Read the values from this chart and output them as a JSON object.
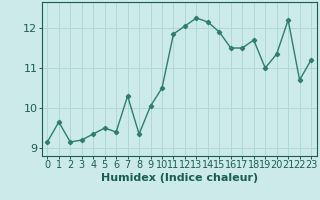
{
  "x": [
    0,
    1,
    2,
    3,
    4,
    5,
    6,
    7,
    8,
    9,
    10,
    11,
    12,
    13,
    14,
    15,
    16,
    17,
    18,
    19,
    20,
    21,
    22,
    23
  ],
  "y": [
    9.15,
    9.65,
    9.15,
    9.2,
    9.35,
    9.5,
    9.4,
    10.3,
    9.35,
    10.05,
    10.5,
    11.85,
    12.05,
    12.25,
    12.15,
    11.9,
    11.5,
    11.5,
    11.7,
    11.0,
    11.35,
    12.2,
    10.7,
    11.2
  ],
  "line_color": "#2e7d6e",
  "marker": "D",
  "marker_size": 2.2,
  "bg_color": "#cceae7",
  "grid_color": "#b0d8d4",
  "xlabel": "Humidex (Indice chaleur)",
  "xlim": [
    -0.5,
    23.5
  ],
  "ylim": [
    8.8,
    12.65
  ],
  "yticks": [
    9,
    10,
    11,
    12
  ],
  "xtick_labels": [
    "0",
    "1",
    "2",
    "3",
    "4",
    "5",
    "6",
    "7",
    "8",
    "9",
    "10",
    "11",
    "12",
    "13",
    "14",
    "15",
    "16",
    "17",
    "18",
    "19",
    "20",
    "21",
    "22",
    "23"
  ],
  "tick_color": "#1a5e52",
  "axis_color": "#1a5e52",
  "font_size": 7,
  "xlabel_fontsize": 8,
  "linewidth": 1.0
}
